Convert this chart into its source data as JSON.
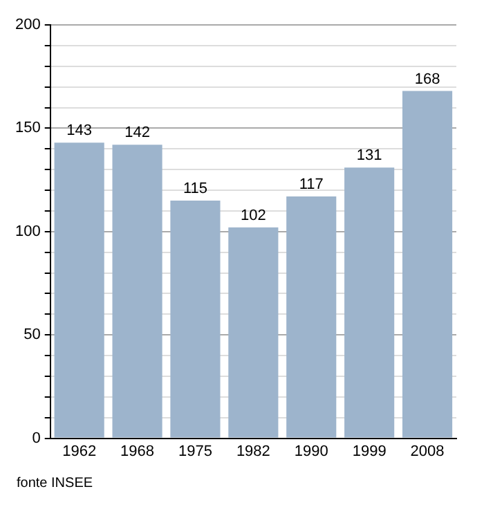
{
  "chart_data": {
    "type": "bar",
    "categories": [
      "1962",
      "1968",
      "1975",
      "1982",
      "1990",
      "1999",
      "2008"
    ],
    "values": [
      143,
      142,
      115,
      102,
      117,
      131,
      168
    ],
    "color": "#9db4cc",
    "ylim": [
      0,
      200
    ],
    "yticks": [
      0,
      {
        "value": 10,
        "label": null
      },
      {
        "value": 20,
        "label": null
      },
      {
        "value": 30,
        "label": null
      },
      {
        "value": 40,
        "label": null
      },
      50,
      {
        "value": 60,
        "label": null
      },
      {
        "value": 70,
        "label": null
      },
      {
        "value": 80,
        "label": null
      },
      {
        "value": 90,
        "label": null
      },
      100,
      {
        "value": 110,
        "label": null
      },
      {
        "value": 120,
        "label": null
      },
      {
        "value": 130,
        "label": null
      },
      {
        "value": 140,
        "label": null
      },
      150,
      {
        "value": 160,
        "label": null
      },
      {
        "value": 170,
        "label": null
      },
      {
        "value": 180,
        "label": null
      },
      {
        "value": 190,
        "label": null
      },
      200
    ],
    "grid": "y",
    "data_labels": true,
    "annotations": [
      "fonte INSEE"
    ]
  }
}
